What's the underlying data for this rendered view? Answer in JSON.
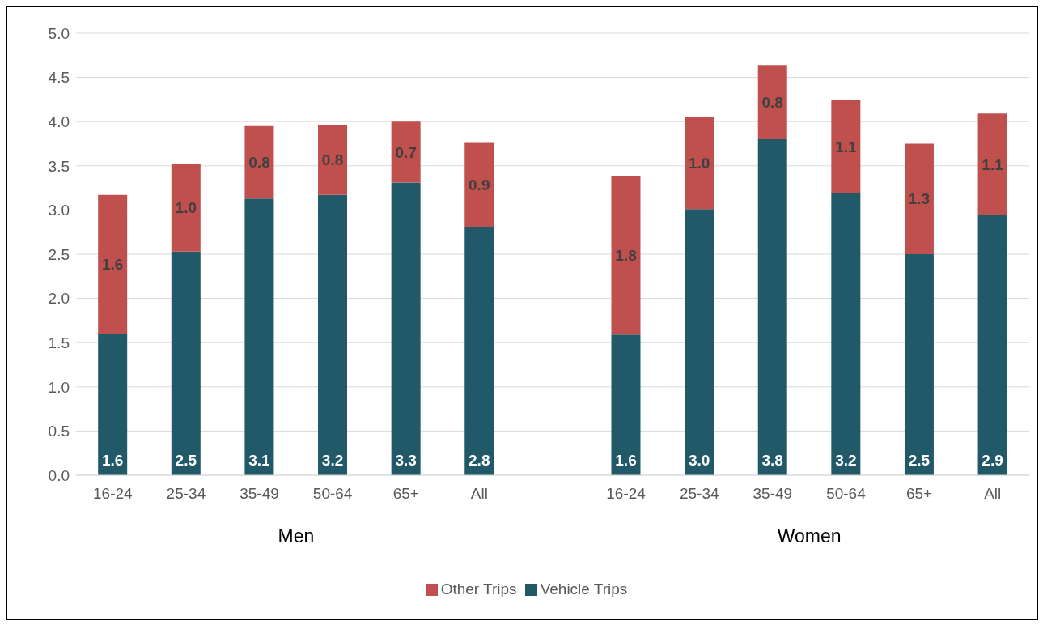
{
  "chart_data": {
    "type": "bar",
    "stacked": true,
    "categories": [
      "16-24",
      "25-34",
      "35-49",
      "50-64",
      "65+",
      "All",
      null,
      "16-24",
      "25-34",
      "35-49",
      "50-64",
      "65+",
      "All"
    ],
    "series": [
      {
        "name": "Vehicle Trips",
        "color": "#215968",
        "values": [
          1.6,
          2.53,
          3.13,
          3.17,
          3.31,
          2.81,
          null,
          1.59,
          3.01,
          3.8,
          3.19,
          2.5,
          2.94
        ],
        "value_labels": [
          "1.6",
          "2.5",
          "3.1",
          "3.2",
          "3.3",
          "2.8",
          null,
          "1.6",
          "3.0",
          "3.8",
          "3.2",
          "2.5",
          "2.9"
        ]
      },
      {
        "name": "Other Trips",
        "color": "#c0504d",
        "values": [
          1.57,
          0.99,
          0.82,
          0.79,
          0.69,
          0.95,
          null,
          1.79,
          1.04,
          0.84,
          1.06,
          1.25,
          1.15
        ],
        "value_labels": [
          "1.6",
          "1.0",
          "0.8",
          "0.8",
          "0.7",
          "0.9",
          null,
          "1.8",
          "1.0",
          "0.8",
          "1.1",
          "1.3",
          "1.1"
        ]
      }
    ],
    "ylim": [
      0,
      5
    ],
    "yticks": [
      {
        "value": 0,
        "label": "0.0"
      },
      {
        "value": 0.5,
        "label": "0.5"
      },
      {
        "value": 1,
        "label": "1.0"
      },
      {
        "value": 1.5,
        "label": "1.5"
      },
      {
        "value": 2,
        "label": "2.0"
      },
      {
        "value": 2.5,
        "label": "2.5"
      },
      {
        "value": 3,
        "label": "3.0"
      },
      {
        "value": 3.5,
        "label": "3.5"
      },
      {
        "value": 4,
        "label": "4.0"
      },
      {
        "value": 4.5,
        "label": "4.5"
      },
      {
        "value": 5,
        "label": "5.0"
      }
    ],
    "annotations": [
      "Men",
      "Women"
    ],
    "grid": "y",
    "legend": "bottom"
  }
}
